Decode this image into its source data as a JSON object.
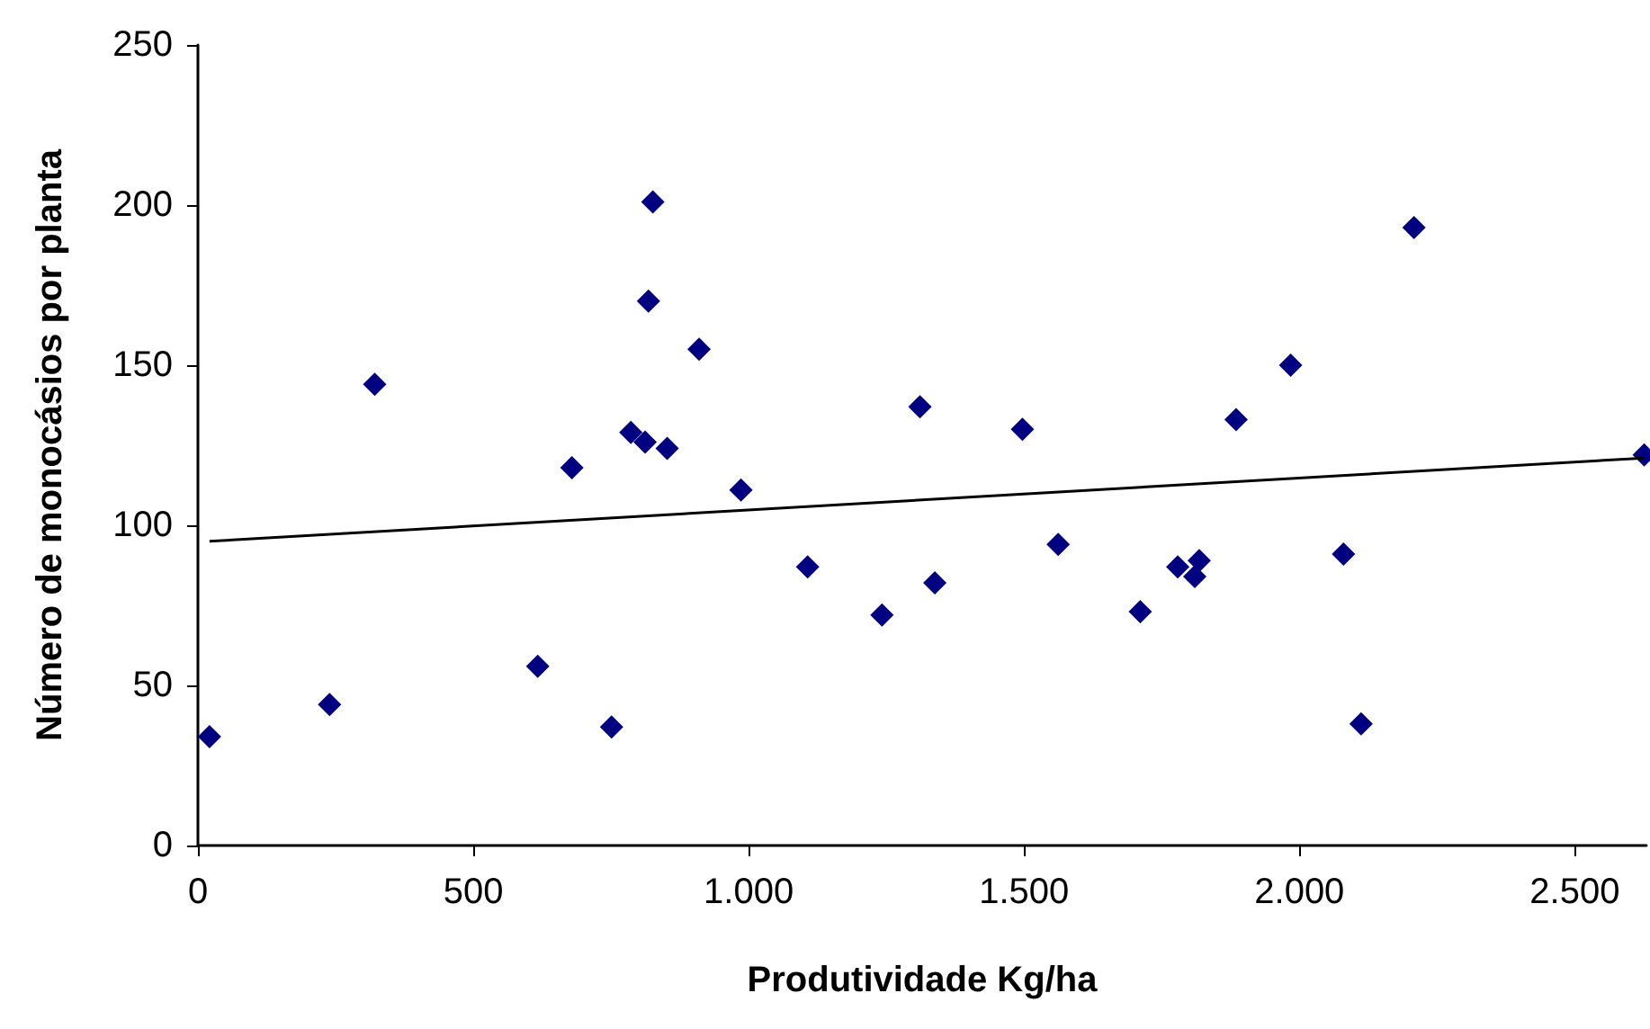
{
  "chart_data": {
    "type": "scatter",
    "xlabel": "Produtividade Kg/ha",
    "ylabel": "Número de monocásios por planta",
    "xlim": [
      0,
      2630
    ],
    "xticks": [
      0,
      500,
      {
        "value": 1000,
        "label": "1.000"
      },
      {
        "value": 1500,
        "label": "1.500"
      },
      {
        "value": 2000,
        "label": "2.000"
      },
      {
        "value": 2500,
        "label": "2.500"
      }
    ],
    "ylim": [
      0,
      250
    ],
    "yticks": [
      0,
      50,
      100,
      150,
      200,
      250
    ],
    "marker": "diamond",
    "series": [
      {
        "color": "#000080",
        "x": [
          21,
          239,
          321,
          617,
          679,
          751,
          786,
          812,
          826,
          818,
          852,
          910,
          986,
          1107,
          1242,
          1311,
          1338,
          1497,
          1562,
          1711,
          1779,
          1810,
          1818,
          1885,
          1984,
          2080,
          2112,
          2208,
          2626
        ],
        "values": [
          34,
          44,
          144,
          56,
          118,
          37,
          129,
          126,
          201,
          170,
          124,
          155,
          111,
          87,
          72,
          137,
          82,
          130,
          94,
          73,
          87,
          84,
          89,
          133,
          150,
          91,
          38,
          193,
          122
        ]
      },
      {
        "type": "line",
        "color": "#000000",
        "x": [
          21,
          2626
        ],
        "values": [
          95,
          121
        ],
        "line_style": "solid",
        "marker": "none"
      }
    ]
  }
}
